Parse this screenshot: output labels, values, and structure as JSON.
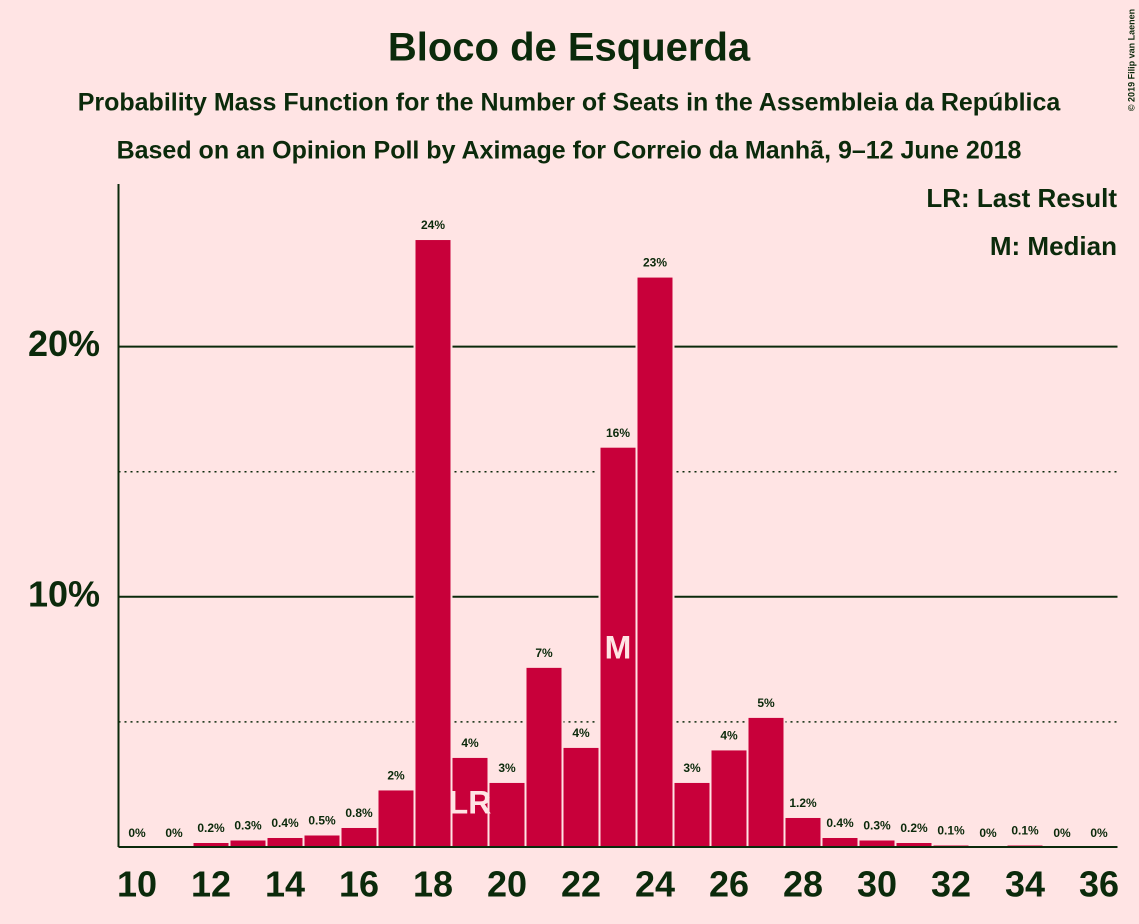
{
  "chart_data": {
    "type": "bar",
    "title": "Bloco de Esquerda",
    "subtitles": [
      "Probability Mass Function for the Number of Seats in the Assembleia da República",
      "Based on an Opinion Poll by Aximage for Correio da Manhã, 9–12 June 2018"
    ],
    "copyright": "© 2019 Filip van Laenen",
    "x": [
      10,
      11,
      12,
      13,
      14,
      15,
      16,
      17,
      18,
      19,
      20,
      21,
      22,
      23,
      24,
      25,
      26,
      27,
      28,
      29,
      30,
      31,
      32,
      33,
      34,
      35,
      36
    ],
    "values": [
      0,
      0,
      0.2,
      0.3,
      0.4,
      0.5,
      0.8,
      2.3,
      24.3,
      3.6,
      2.6,
      7.2,
      4.0,
      16.0,
      22.8,
      2.6,
      3.9,
      5.2,
      1.2,
      0.4,
      0.3,
      0.2,
      0.1,
      0,
      0.1,
      0,
      0
    ],
    "value_labels": [
      "0%",
      "0%",
      "0.2%",
      "0.3%",
      "0.4%",
      "0.5%",
      "0.8%",
      "2%",
      "24%",
      "4%",
      "3%",
      "7%",
      "4%",
      "16%",
      "23%",
      "3%",
      "4%",
      "5%",
      "1.2%",
      "0.4%",
      "0.3%",
      "0.2%",
      "0.1%",
      "0%",
      "0.1%",
      "0%",
      "0%"
    ],
    "color": "#c8003a",
    "xlim": [
      9.5,
      36.5
    ],
    "xticks": [
      10,
      12,
      14,
      16,
      18,
      20,
      22,
      24,
      26,
      28,
      30,
      32,
      34,
      36
    ],
    "ylim": [
      0,
      26.5
    ],
    "yticks": [
      {
        "value": 10,
        "label": "10%"
      },
      {
        "value": 20,
        "label": "20%"
      }
    ],
    "minor_gridlines": [
      5,
      15
    ],
    "grid": true,
    "markers": [
      {
        "x": 19,
        "label": "LR"
      },
      {
        "x": 23,
        "label": "M"
      }
    ],
    "legend": [
      "LR: Last Result",
      "M: Median"
    ]
  }
}
